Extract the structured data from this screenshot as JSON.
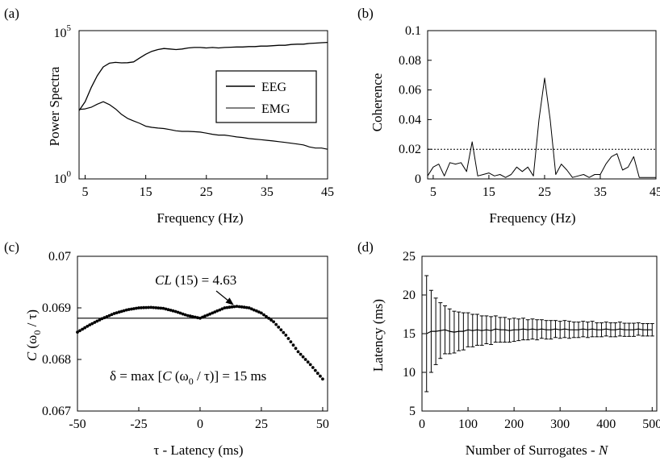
{
  "chart_data": [
    {
      "panel": "(a)",
      "type": "line",
      "scale_y": "log",
      "xlabel": "Frequency (Hz)",
      "ylabel": "Power Spectra",
      "xlim": [
        4,
        45
      ],
      "ylim": [
        1,
        100000
      ],
      "xticks": [
        "5",
        "15",
        "25",
        "35",
        "45"
      ],
      "ytick_base": "10",
      "yticks": [
        {
          "exp": "0",
          "value": 1
        },
        {
          "exp": "5",
          "value": 100000
        }
      ],
      "legend": {
        "position": "center-right",
        "entries": [
          "EEG",
          "EMG"
        ]
      },
      "series": [
        {
          "name": "EMG",
          "x": [
            4,
            5,
            6,
            7,
            8,
            9,
            10,
            11,
            12,
            13,
            14,
            15,
            16,
            17,
            18,
            19,
            20,
            21,
            22,
            23,
            24,
            25,
            26,
            27,
            28,
            29,
            30,
            31,
            32,
            33,
            34,
            35,
            36,
            37,
            38,
            39,
            40,
            41,
            42,
            43,
            44,
            45
          ],
          "y": [
            200,
            400,
            1200,
            3000,
            6000,
            8000,
            8500,
            8200,
            8300,
            8800,
            12000,
            16000,
            20000,
            23000,
            25000,
            24000,
            23000,
            24000,
            26000,
            27000,
            27000,
            26000,
            27000,
            26000,
            27000,
            27500,
            28000,
            28000,
            29000,
            29000,
            30000,
            30000,
            31000,
            32000,
            32000,
            34000,
            35000,
            35000,
            37000,
            38000,
            39000,
            40000
          ]
        },
        {
          "name": "EEG",
          "x": [
            4,
            5,
            6,
            7,
            8,
            9,
            10,
            11,
            12,
            13,
            14,
            15,
            16,
            17,
            18,
            19,
            20,
            21,
            22,
            23,
            24,
            25,
            26,
            27,
            28,
            29,
            30,
            31,
            32,
            33,
            34,
            35,
            36,
            37,
            38,
            39,
            40,
            41,
            42,
            43,
            44,
            45
          ],
          "y": [
            220,
            230,
            260,
            330,
            400,
            320,
            230,
            150,
            110,
            90,
            75,
            60,
            55,
            52,
            50,
            46,
            42,
            40,
            40,
            39,
            38,
            35,
            32,
            30,
            30,
            28,
            26,
            25,
            23,
            22,
            21,
            20,
            19,
            18,
            17,
            16,
            15,
            14,
            12,
            11,
            11,
            10
          ]
        }
      ]
    },
    {
      "panel": "(b)",
      "type": "line",
      "xlabel": "Frequency (Hz)",
      "ylabel": "Coherence",
      "xlim": [
        4,
        45
      ],
      "ylim": [
        0,
        0.1
      ],
      "xticks": [
        "5",
        "15",
        "25",
        "35",
        "45"
      ],
      "yticks": [
        "0",
        "0.02",
        "0.04",
        "0.06",
        "0.08",
        "0.1"
      ],
      "threshold": 0.02,
      "series": [
        {
          "x": [
            4,
            5,
            6,
            7,
            8,
            9,
            10,
            11,
            12,
            13,
            14,
            15,
            16,
            17,
            18,
            19,
            20,
            21,
            22,
            23,
            24,
            25,
            26,
            27,
            28,
            29,
            30,
            31,
            32,
            33,
            34,
            35,
            36,
            37,
            38,
            39,
            40,
            41,
            42,
            43,
            44,
            45
          ],
          "y": [
            0.002,
            0.008,
            0.01,
            0.002,
            0.011,
            0.01,
            0.011,
            0.005,
            0.025,
            0.002,
            0.003,
            0.004,
            0.002,
            0.003,
            0.001,
            0.003,
            0.008,
            0.005,
            0.008,
            0.002,
            0.04,
            0.068,
            0.04,
            0.003,
            0.01,
            0.006,
            0.001,
            0.002,
            0.003,
            0.001,
            0.003,
            0.003,
            0.01,
            0.015,
            0.017,
            0.006,
            0.008,
            0.015,
            0.001,
            0.001,
            0.001,
            0.001
          ]
        }
      ]
    },
    {
      "panel": "(c)",
      "type": "scatter",
      "xlabel": "τ - Latency (ms)",
      "xlim": [
        -50,
        52
      ],
      "ylim": [
        0.067,
        0.07
      ],
      "xticks": [
        "-50",
        "-25",
        "0",
        "25",
        "50"
      ],
      "yticks": [
        "0.067",
        "0.068",
        "0.069",
        "0.07"
      ],
      "ylabel_italic": "C",
      "ylabel_open": " (ω",
      "ylabel_sub": "0",
      "ylabel_close": " / τ)",
      "threshold": 0.0688,
      "annotation_cl_var": "CL",
      "annotation_cl_rest": " (15) = 4.63",
      "annotation_delta_pre": "δ = max [",
      "annotation_delta_c": "C",
      "annotation_delta_mid": " (ω",
      "annotation_delta_sub": "0",
      "annotation_delta_post": " / τ)] = 15 ms",
      "series": [
        {
          "x": [
            -50,
            -45,
            -40,
            -35,
            -30,
            -25,
            -20,
            -15,
            -10,
            -5,
            0,
            5,
            10,
            15,
            20,
            25,
            30,
            35,
            40,
            45,
            50
          ],
          "y": [
            0.06853,
            0.06867,
            0.06879,
            0.06889,
            0.06896,
            0.069,
            0.06901,
            0.06899,
            0.06893,
            0.06885,
            0.0688,
            0.0689,
            0.069,
            0.06903,
            0.069,
            0.0689,
            0.06873,
            0.06847,
            0.06815,
            0.0679,
            0.06762
          ]
        }
      ]
    },
    {
      "panel": "(d)",
      "type": "line",
      "xlabel_text": "Number of Surrogates - ",
      "xlabel_var": "N",
      "ylabel": "Latency (ms)",
      "xlim": [
        0,
        510
      ],
      "ylim": [
        5,
        25
      ],
      "xticks": [
        "0",
        "100",
        "200",
        "300",
        "400",
        "500"
      ],
      "yticks": [
        "5",
        "10",
        "15",
        "20",
        "25"
      ],
      "series": [
        {
          "x": [
            10,
            20,
            30,
            40,
            50,
            60,
            70,
            80,
            90,
            100,
            110,
            120,
            130,
            140,
            150,
            160,
            170,
            180,
            190,
            200,
            210,
            220,
            230,
            240,
            250,
            260,
            270,
            280,
            290,
            300,
            310,
            320,
            330,
            340,
            350,
            360,
            370,
            380,
            390,
            400,
            410,
            420,
            430,
            440,
            450,
            460,
            470,
            480,
            490,
            500
          ],
          "y": [
            15.0,
            15.3,
            15.3,
            15.4,
            15.5,
            15.3,
            15.2,
            15.3,
            15.3,
            15.5,
            15.4,
            15.5,
            15.4,
            15.5,
            15.4,
            15.6,
            15.5,
            15.5,
            15.4,
            15.5,
            15.5,
            15.6,
            15.5,
            15.6,
            15.5,
            15.6,
            15.5,
            15.5,
            15.6,
            15.5,
            15.6,
            15.5,
            15.5,
            15.5,
            15.6,
            15.5,
            15.6,
            15.5,
            15.5,
            15.6,
            15.5,
            15.5,
            15.6,
            15.5,
            15.5,
            15.5,
            15.6,
            15.5,
            15.5,
            15.5
          ],
          "err": [
            7.5,
            5.3,
            4.3,
            3.6,
            3.1,
            2.9,
            2.7,
            2.5,
            2.4,
            2.2,
            2.1,
            2.0,
            1.9,
            1.8,
            1.8,
            1.7,
            1.6,
            1.6,
            1.5,
            1.5,
            1.4,
            1.4,
            1.3,
            1.3,
            1.3,
            1.2,
            1.2,
            1.2,
            1.1,
            1.1,
            1.1,
            1.1,
            1.0,
            1.0,
            1.0,
            1.0,
            1.0,
            0.9,
            0.9,
            0.9,
            0.9,
            0.9,
            0.9,
            0.85,
            0.85,
            0.85,
            0.8,
            0.8,
            0.8,
            0.8
          ]
        }
      ]
    }
  ]
}
